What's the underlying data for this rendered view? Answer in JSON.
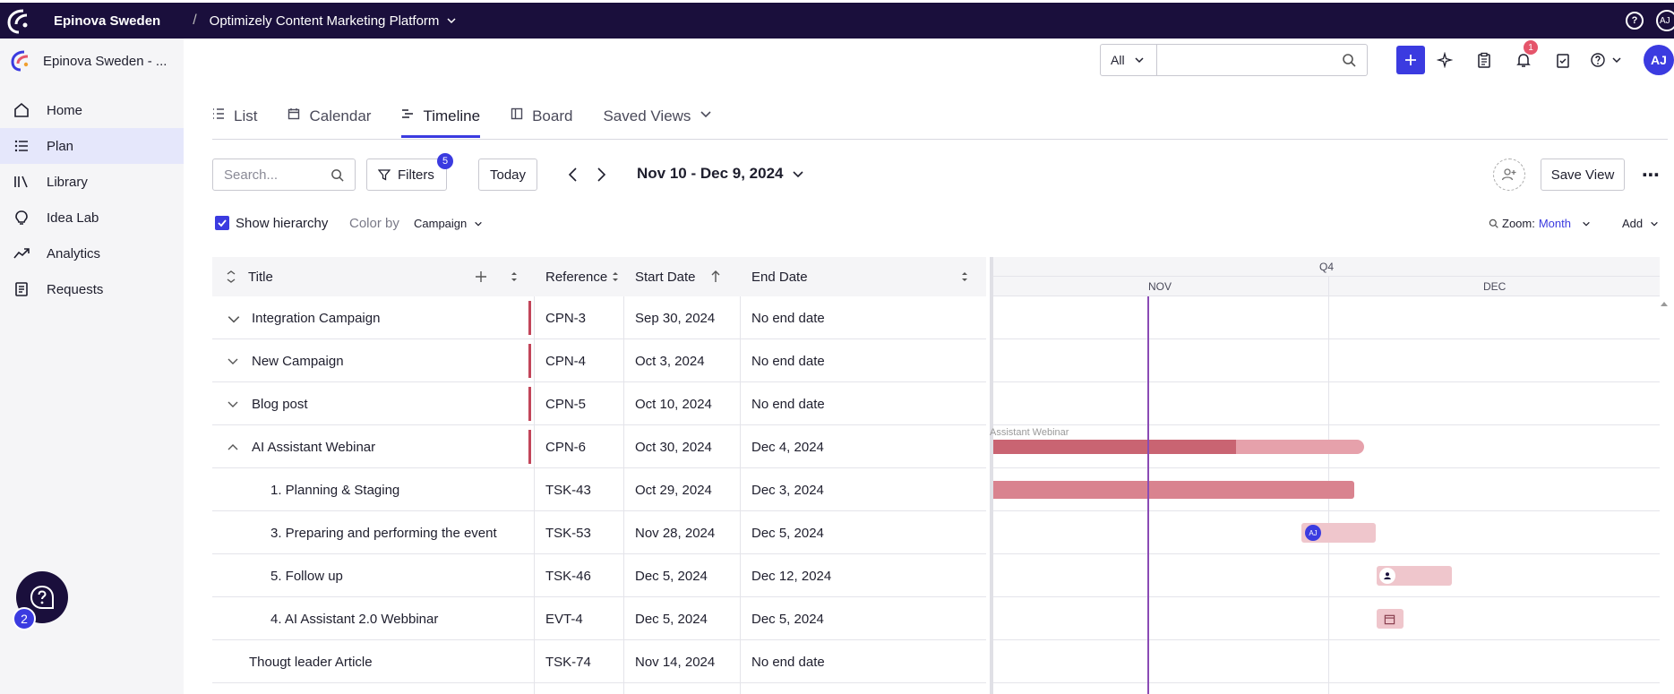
{
  "topbar": {
    "org": "Epinova Sweden",
    "product": "Optimizely Content Marketing Platform",
    "user_initials": "AJ"
  },
  "sidebar": {
    "workspace": "Epinova Sweden - ...",
    "items": [
      {
        "label": "Home",
        "icon": "home-icon"
      },
      {
        "label": "Plan",
        "icon": "list-icon"
      },
      {
        "label": "Library",
        "icon": "library-icon"
      },
      {
        "label": "Idea Lab",
        "icon": "lightbulb-icon"
      },
      {
        "label": "Analytics",
        "icon": "trend-icon"
      },
      {
        "label": "Requests",
        "icon": "document-icon"
      }
    ],
    "help_badge": "2"
  },
  "header": {
    "scope": "All",
    "search_value": "",
    "notification_count": "1",
    "avatar": "AJ"
  },
  "tabs": [
    {
      "label": "List"
    },
    {
      "label": "Calendar"
    },
    {
      "label": "Timeline"
    },
    {
      "label": "Board"
    },
    {
      "label": "Saved Views"
    }
  ],
  "toolbar": {
    "search_placeholder": "Search...",
    "filters_label": "Filters",
    "filters_count": "5",
    "today_label": "Today",
    "date_range": "Nov 10 - Dec 9, 2024",
    "save_view": "Save View"
  },
  "options": {
    "show_hierarchy": "Show hierarchy",
    "color_by_label": "Color by",
    "color_by_value": "Campaign",
    "zoom_label": "Zoom:",
    "zoom_value": "Month",
    "add_label": "Add"
  },
  "table": {
    "columns": {
      "title": "Title",
      "reference": "Reference",
      "start": "Start Date",
      "end": "End Date"
    },
    "rows": [
      {
        "title": "Integration Campaign",
        "ref": "CPN-3",
        "start": "Sep 30, 2024",
        "end": "No end date"
      },
      {
        "title": "New Campaign",
        "ref": "CPN-4",
        "start": "Oct 3, 2024",
        "end": "No end date"
      },
      {
        "title": "Blog post",
        "ref": "CPN-5",
        "start": "Oct 10, 2024",
        "end": "No end date"
      },
      {
        "title": "AI Assistant Webinar",
        "ref": "CPN-6",
        "start": "Oct 30, 2024",
        "end": "Dec 4, 2024"
      },
      {
        "title": "1. Planning & Staging",
        "ref": "TSK-43",
        "start": "Oct 29, 2024",
        "end": "Dec 3, 2024"
      },
      {
        "title": "3. Preparing and performing the event",
        "ref": "TSK-53",
        "start": "Nov 28, 2024",
        "end": "Dec 5, 2024"
      },
      {
        "title": "5. Follow up",
        "ref": "TSK-46",
        "start": "Dec 5, 2024",
        "end": "Dec 12, 2024"
      },
      {
        "title": "4. AI Assistant 2.0 Webbinar",
        "ref": "EVT-4",
        "start": "Dec 5, 2024",
        "end": "Dec 5, 2024"
      },
      {
        "title": "Thougt leader Article",
        "ref": "TSK-74",
        "start": "Nov 14, 2024",
        "end": "No end date"
      }
    ]
  },
  "timeline": {
    "quarter": "Q4",
    "months": [
      "NOV",
      "DEC"
    ],
    "bar_label": "Assistant Webinar",
    "assignee": "AJ",
    "colors": {
      "bar_dark": "#c96472",
      "bar_light": "#e6a1ab",
      "bar_pale": "#efc6cc",
      "today": "#8a4bb5"
    }
  }
}
